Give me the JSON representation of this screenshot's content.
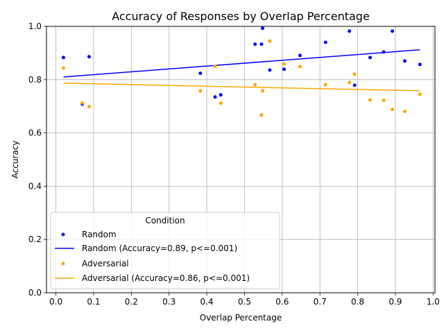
{
  "chart_data": {
    "type": "scatter",
    "title": "Accuracy of Responses by Overlap Percentage",
    "xlabel": "Overlap Percentage",
    "ylabel": "Accuracy",
    "xlim": [
      -0.025,
      1.005
    ],
    "ylim": [
      0.0,
      1.0
    ],
    "xticks": [
      0.0,
      0.1,
      0.2,
      0.3,
      0.4,
      0.5,
      0.6,
      0.7,
      0.8,
      0.9,
      1.0
    ],
    "xtick_labels": [
      "0.0",
      "0.1",
      "0.2",
      "0.3",
      "0.4",
      "0.5",
      "0.6",
      "0.7",
      "0.8",
      "0.9",
      "1.0"
    ],
    "yticks": [
      0.0,
      0.2,
      0.4,
      0.6,
      0.8,
      1.0
    ],
    "ytick_labels": [
      "0.0",
      "0.2",
      "0.4",
      "0.6",
      "0.8",
      "1.0"
    ],
    "grid": true,
    "legend": {
      "title": "Condition",
      "placement": "lower-left",
      "entries": [
        {
          "label": "Random",
          "kind": "marker",
          "color": "#0000ff"
        },
        {
          "label": "Random (Accuracy=0.89, p<=0.001)",
          "kind": "line",
          "color": "#0000ff"
        },
        {
          "label": "Adversarial",
          "kind": "marker",
          "color": "#ffa500"
        },
        {
          "label": "Adversarial (Accuracy=0.86, p<=0.001)",
          "kind": "line",
          "color": "#ffa500"
        }
      ]
    },
    "series": [
      {
        "name": "Random",
        "color": "#0000ff",
        "points": [
          [
            0.02,
            0.883
          ],
          [
            0.07,
            0.708
          ],
          [
            0.088,
            0.886
          ],
          [
            0.383,
            0.824
          ],
          [
            0.422,
            0.735
          ],
          [
            0.437,
            0.743
          ],
          [
            0.528,
            0.933
          ],
          [
            0.545,
            0.933
          ],
          [
            0.548,
            0.993
          ],
          [
            0.567,
            0.836
          ],
          [
            0.605,
            0.839
          ],
          [
            0.647,
            0.891
          ],
          [
            0.715,
            0.94
          ],
          [
            0.778,
            0.982
          ],
          [
            0.792,
            0.779
          ],
          [
            0.833,
            0.883
          ],
          [
            0.869,
            0.904
          ],
          [
            0.892,
            0.982
          ],
          [
            0.925,
            0.87
          ],
          [
            0.965,
            0.857
          ]
        ],
        "trend": {
          "x": [
            0.02,
            0.965
          ],
          "y": [
            0.81,
            0.912
          ]
        }
      },
      {
        "name": "Adversarial",
        "color": "#ffa500",
        "points": [
          [
            0.02,
            0.844
          ],
          [
            0.07,
            0.712
          ],
          [
            0.088,
            0.699
          ],
          [
            0.383,
            0.758
          ],
          [
            0.422,
            0.85
          ],
          [
            0.437,
            0.712
          ],
          [
            0.528,
            0.781
          ],
          [
            0.545,
            0.667
          ],
          [
            0.548,
            0.758
          ],
          [
            0.567,
            0.945
          ],
          [
            0.605,
            0.859
          ],
          [
            0.647,
            0.849
          ],
          [
            0.715,
            0.781
          ],
          [
            0.778,
            0.789
          ],
          [
            0.792,
            0.82
          ],
          [
            0.833,
            0.724
          ],
          [
            0.869,
            0.722
          ],
          [
            0.892,
            0.688
          ],
          [
            0.925,
            0.681
          ],
          [
            0.965,
            0.745
          ]
        ],
        "trend": {
          "x": [
            0.02,
            0.965
          ],
          "y": [
            0.787,
            0.758
          ]
        }
      }
    ]
  }
}
